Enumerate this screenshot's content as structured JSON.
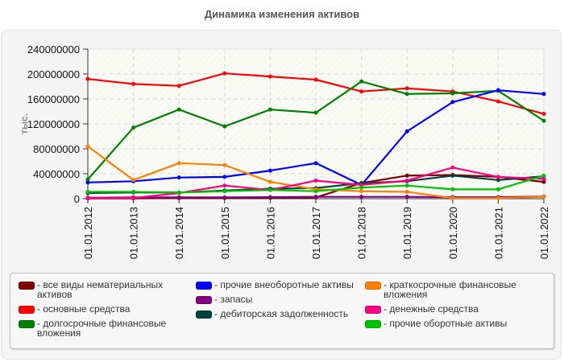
{
  "title": "Динамика изменения активов",
  "chart_data": {
    "type": "line",
    "title": "Динамика изменения активов",
    "xlabel": "",
    "ylabel": "тыс.",
    "ylim": [
      0,
      240000000
    ],
    "yticks": [
      "0",
      "40000000",
      "80000000",
      "120000000",
      "160000000",
      "200000000",
      "240000000"
    ],
    "grid": true,
    "legend_position": "bottom",
    "categories": [
      "01.01.2012",
      "01.01.2013",
      "01.01.2014",
      "01.01.2015",
      "01.01.2016",
      "01.01.2017",
      "01.01.2018",
      "01.01.2019",
      "01.01.2020",
      "01.01.2021",
      "01.01.2022"
    ],
    "series": [
      {
        "name": "все виды нематериальных активов",
        "color": "#800000",
        "values": [
          500000,
          500000,
          1000000,
          1000000,
          1500000,
          2000000,
          25000000,
          37000000,
          38000000,
          35000000,
          27000000
        ]
      },
      {
        "name": "основные средства",
        "color": "#ff0000",
        "values": [
          192000000,
          184000000,
          181000000,
          201000000,
          196000000,
          191000000,
          172000000,
          177000000,
          172000000,
          156000000,
          136000000
        ]
      },
      {
        "name": "долгосрочные финансовые вложения",
        "color": "#008000",
        "values": [
          31000000,
          114000000,
          143000000,
          116000000,
          143000000,
          138000000,
          188000000,
          168000000,
          169000000,
          173000000,
          125000000
        ]
      },
      {
        "name": "прочие внеоборотные активы",
        "color": "#0000ff",
        "values": [
          26000000,
          28000000,
          34000000,
          35000000,
          45000000,
          57000000,
          22000000,
          108000000,
          155000000,
          174000000,
          168000000
        ]
      },
      {
        "name": "запасы",
        "color": "#800080",
        "values": [
          1500000,
          2000000,
          2000000,
          2000000,
          2500000,
          3000000,
          3000000,
          3000000,
          2500000,
          2500000,
          3500000
        ]
      },
      {
        "name": "дебиторская задолженность",
        "color": "#004040",
        "values": [
          9000000,
          10000000,
          10000000,
          13000000,
          16000000,
          17000000,
          25000000,
          28000000,
          37000000,
          30000000,
          36000000
        ]
      },
      {
        "name": "краткосрочные финансовые вложения",
        "color": "#ff8000",
        "values": [
          84000000,
          30000000,
          57000000,
          54000000,
          27000000,
          15000000,
          12000000,
          11000000,
          1000000,
          1000000,
          3000000
        ]
      },
      {
        "name": "денежные средства",
        "color": "#ff0080",
        "values": [
          1000000,
          1000000,
          9000000,
          21000000,
          14000000,
          29000000,
          22000000,
          29000000,
          50000000,
          35000000,
          32000000
        ]
      },
      {
        "name": "прочие оборотные активы",
        "color": "#00c000",
        "values": [
          11000000,
          11000000,
          10000000,
          12000000,
          14000000,
          12000000,
          18000000,
          21000000,
          15000000,
          15000000,
          37000000
        ]
      }
    ]
  },
  "legend": {
    "columns": [
      [
        {
          "label": "- все виды нематериальных\nактивов",
          "color": "#800000"
        },
        {
          "label": "- основные средства",
          "color": "#ff0000"
        },
        {
          "label": "- долгосрочные финансовые\nвложения",
          "color": "#008000"
        }
      ],
      [
        {
          "label": "- прочие внеоборотные активы",
          "color": "#0000ff"
        },
        {
          "label": "- запасы",
          "color": "#800080"
        },
        {
          "label": "- дебиторская задолженность",
          "color": "#004040"
        }
      ],
      [
        {
          "label": "- краткосрочные финансовые\nвложения",
          "color": "#ff8000"
        },
        {
          "label": "- денежные средства",
          "color": "#ff0080"
        },
        {
          "label": "- прочие оборотные активы",
          "color": "#00c000"
        }
      ]
    ]
  }
}
